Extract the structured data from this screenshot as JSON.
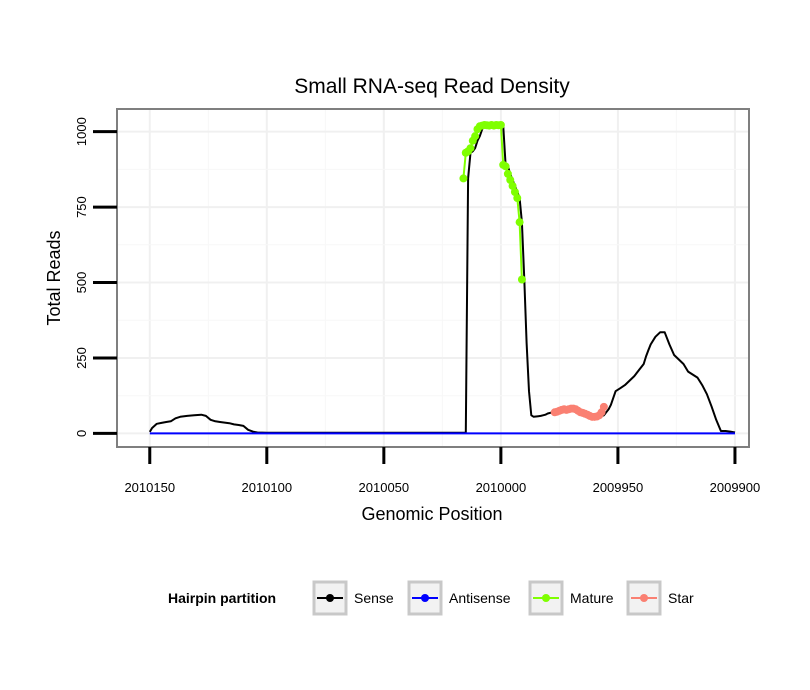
{
  "chart_data": {
    "type": "line",
    "title": "Small RNA-seq Read Density",
    "xlabel": "Genomic Position",
    "ylabel": "Total Reads",
    "x_reversed": true,
    "xlim": [
      2010164,
      2009894
    ],
    "ylim": [
      -45,
      1075
    ],
    "x_ticks": [
      2010150,
      2010100,
      2010050,
      2010000,
      2009950,
      2009900
    ],
    "x_tick_labels": [
      "2010150",
      "2010100",
      "2010050",
      "2010000",
      "2009950",
      "2009900"
    ],
    "y_ticks": [
      0,
      250,
      500,
      750,
      1000
    ],
    "y_tick_labels": [
      "0",
      "250",
      "500",
      "750",
      "1000"
    ],
    "grid": true,
    "legend": {
      "title": "Hairpin partition",
      "position": "bottom",
      "entries": [
        {
          "name": "Sense",
          "color": "#000000"
        },
        {
          "name": "Antisense",
          "color": "#0000ff"
        },
        {
          "name": "Mature",
          "color": "#7fff00"
        },
        {
          "name": "Star",
          "color": "#fa8072"
        }
      ]
    },
    "series": [
      {
        "name": "Sense",
        "color": "#000000",
        "style": "line",
        "x": [
          2010150,
          2010149,
          2010147,
          2010145,
          2010143,
          2010141,
          2010139,
          2010137,
          2010134,
          2010131,
          2010128,
          2010126,
          2010124,
          2010122,
          2010120,
          2010118,
          2010116,
          2010114,
          2010112,
          2010110,
          2010108,
          2010106,
          2010104,
          2010100,
          2010080,
          2010060,
          2010040,
          2010030,
          2010020,
          2010016,
          2010015,
          2010014,
          2010013,
          2010012,
          2010011,
          2010010,
          2010009,
          2010008,
          2010007,
          2010006,
          2010005,
          2010004,
          2010003,
          2010002,
          2010001,
          2010000,
          2009999,
          2009998,
          2009997,
          2009996,
          2009995,
          2009994,
          2009993,
          2009992,
          2009991,
          2009990,
          2009989,
          2009988,
          2009987,
          2009986,
          2009985,
          2009984,
          2009983,
          2009982,
          2009981,
          2009980,
          2009978,
          2009976,
          2009975,
          2009974,
          2009972,
          2009970,
          2009968,
          2009966,
          2009964,
          2009962,
          2009960,
          2009958,
          2009956,
          2009955,
          2009954,
          2009953,
          2009951,
          2009949,
          2009947,
          2009945,
          2009943,
          2009941,
          2009939,
          2009938,
          2009937,
          2009936,
          2009934,
          2009932,
          2009930,
          2009928,
          2009926,
          2009924,
          2009922,
          2009920,
          2009918,
          2009916,
          2009914,
          2009912,
          2009910,
          2009908,
          2009906,
          2009904,
          2009902,
          2009900
        ],
        "y": [
          5,
          18,
          32,
          35,
          38,
          40,
          50,
          55,
          58,
          60,
          62,
          58,
          45,
          40,
          38,
          36,
          34,
          30,
          28,
          25,
          12,
          6,
          3,
          2,
          2,
          2,
          2,
          2,
          2,
          2,
          2,
          845,
          930,
          935,
          945,
          970,
          985,
          1008,
          1018,
          1020,
          1022,
          1021,
          1020,
          1022,
          1020,
          1022,
          1021,
          890,
          885,
          860,
          840,
          820,
          800,
          780,
          700,
          510,
          300,
          140,
          60,
          55,
          56,
          57,
          58,
          60,
          62,
          66,
          70,
          72,
          75,
          78,
          80,
          82,
          75,
          68,
          62,
          58,
          55,
          56,
          60,
          70,
          80,
          95,
          140,
          150,
          160,
          175,
          190,
          210,
          230,
          255,
          275,
          295,
          320,
          335,
          335,
          295,
          260,
          245,
          230,
          205,
          195,
          185,
          160,
          130,
          90,
          45,
          8,
          8,
          6,
          3
        ],
        "points": false
      },
      {
        "name": "Antisense",
        "color": "#0000ff",
        "style": "line",
        "x": [
          2010150,
          2009900
        ],
        "y": [
          0,
          0
        ],
        "points": false
      },
      {
        "name": "Mature",
        "color": "#7fff00",
        "style": "line+points",
        "x": [
          2010016,
          2010015,
          2010014,
          2010013,
          2010012,
          2010011,
          2010010,
          2010009,
          2010008,
          2010007,
          2010006,
          2010005,
          2010004,
          2010003,
          2010002,
          2010001,
          2010000,
          2009999,
          2009998,
          2009997,
          2009996,
          2009995,
          2009994,
          2009993,
          2009992,
          2009991
        ],
        "y": [
          845,
          930,
          935,
          945,
          970,
          985,
          1008,
          1018,
          1020,
          1022,
          1021,
          1020,
          1022,
          1020,
          1022,
          1021,
          1022,
          890,
          885,
          860,
          840,
          820,
          800,
          780,
          700,
          510
        ],
        "points": true
      },
      {
        "name": "Star",
        "color": "#fa8072",
        "style": "line+points",
        "x": [
          2009977,
          2009976,
          2009975,
          2009974,
          2009973,
          2009972,
          2009971,
          2009970,
          2009969,
          2009968,
          2009967,
          2009966,
          2009965,
          2009964,
          2009963,
          2009962,
          2009961,
          2009960,
          2009959,
          2009958,
          2009957,
          2009956
        ],
        "y": [
          70,
          72,
          75,
          78,
          80,
          78,
          80,
          82,
          82,
          80,
          75,
          70,
          68,
          65,
          62,
          58,
          55,
          55,
          56,
          60,
          70,
          88
        ],
        "points": true
      }
    ]
  }
}
